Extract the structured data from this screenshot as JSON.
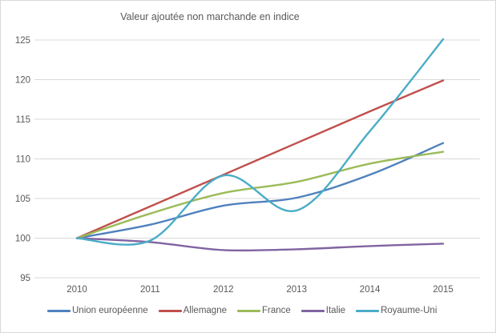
{
  "chart": {
    "background_color": "#FFFFFF",
    "border_color": "#D9D9D9",
    "grid_color": "#D9D9D9",
    "text_color": "#595959"
  },
  "chart_data": {
    "type": "line",
    "title": "Valeur ajoutée non marchande en indice",
    "categories": [
      "2010",
      "2011",
      "2012",
      "2013",
      "2014",
      "2015"
    ],
    "series": [
      {
        "name": "Union européenne",
        "color": "#4F81BD",
        "values": [
          100,
          101.7,
          104.1,
          105.1,
          108.0,
          112.0
        ]
      },
      {
        "name": "Allemagne",
        "color": "#C0504D",
        "values": [
          100,
          104.0,
          108.0,
          112.0,
          116.0,
          119.9
        ]
      },
      {
        "name": "France",
        "color": "#9BBB59",
        "values": [
          100,
          103.1,
          105.7,
          107.1,
          109.4,
          110.9
        ]
      },
      {
        "name": "Italie",
        "color": "#8064A2",
        "values": [
          100,
          99.5,
          98.5,
          98.6,
          99.0,
          99.3
        ]
      },
      {
        "name": "Royaume-Uni",
        "color": "#4BACC6",
        "values": [
          100,
          99.7,
          107.9,
          103.5,
          113.5,
          125.1
        ]
      }
    ],
    "xlabel": "",
    "ylabel": "",
    "ylim": [
      95,
      125
    ],
    "yticks": [
      125,
      120,
      115,
      110,
      105,
      100,
      95
    ],
    "grid": true,
    "smooth_lines": true,
    "legend_position": "bottom"
  }
}
